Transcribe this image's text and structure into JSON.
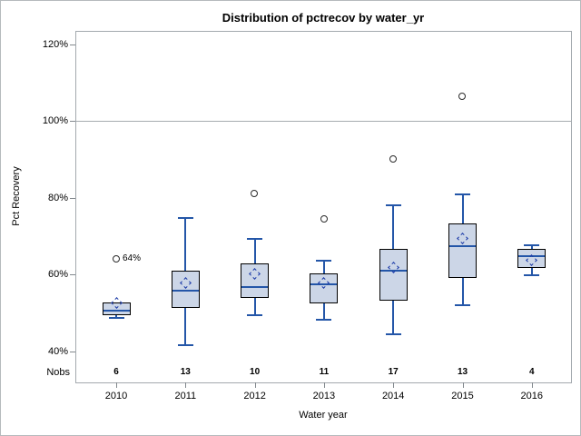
{
  "window": {
    "background": "#ffffff",
    "frame_border": "#b5babd"
  },
  "chart_data": {
    "type": "boxplot",
    "title": "Distribution of pctrecov by water_yr",
    "xlabel": "Water year",
    "ylabel": "Pct Recovery",
    "nobs_label": "Nobs",
    "y_ticks": [
      40,
      60,
      80,
      100,
      120
    ],
    "y_tick_suffix": "%",
    "ylim": [
      36,
      124
    ],
    "reference_line_y": 100,
    "grid": "off",
    "legend": "none",
    "categories": [
      "2010",
      "2011",
      "2012",
      "2013",
      "2014",
      "2015",
      "2016"
    ],
    "nobs": [
      6,
      13,
      10,
      11,
      17,
      13,
      4
    ],
    "series": [
      {
        "year": "2010",
        "nobs": 6,
        "whisker_low": 48.7,
        "q1": 49.4,
        "median": 50.6,
        "mean": 52.6,
        "q3": 52.8,
        "whisker_high": 52.8,
        "outliers": [
          64
        ],
        "outlier_labels": [
          "64%"
        ]
      },
      {
        "year": "2011",
        "nobs": 13,
        "whisker_low": 41.7,
        "q1": 51.3,
        "median": 55.7,
        "mean": 57.8,
        "q3": 61.1,
        "whisker_high": 74.7,
        "outliers": [],
        "outlier_labels": []
      },
      {
        "year": "2012",
        "nobs": 10,
        "whisker_low": 49.5,
        "q1": 54.0,
        "median": 56.8,
        "mean": 60.2,
        "q3": 62.8,
        "whisker_high": 69.3,
        "outliers": [
          81
        ],
        "outlier_labels": []
      },
      {
        "year": "2013",
        "nobs": 11,
        "whisker_low": 48.2,
        "q1": 52.5,
        "median": 57.4,
        "mean": 57.7,
        "q3": 60.4,
        "whisker_high": 63.5,
        "outliers": [
          74.4
        ],
        "outlier_labels": []
      },
      {
        "year": "2014",
        "nobs": 17,
        "whisker_low": 44.5,
        "q1": 53.1,
        "median": 61.0,
        "mean": 61.9,
        "q3": 66.6,
        "whisker_high": 78.0,
        "outliers": [
          90.1
        ],
        "outlier_labels": []
      },
      {
        "year": "2015",
        "nobs": 13,
        "whisker_low": 52.1,
        "q1": 59.0,
        "median": 67.5,
        "mean": 69.3,
        "q3": 73.4,
        "whisker_high": 80.8,
        "outliers": [
          106.4
        ],
        "outlier_labels": []
      },
      {
        "year": "2016",
        "nobs": 4,
        "whisker_low": 59.8,
        "q1": 61.6,
        "median": 64.7,
        "mean": 63.6,
        "q3": 66.6,
        "whisker_high": 67.6,
        "outliers": [],
        "outlier_labels": []
      }
    ],
    "colors": {
      "box_fill": "#ccd6e7",
      "box_border": "#000000",
      "whisker": "#2456a8",
      "median": "#2456a8",
      "mean_diamond": "#1c3ba8",
      "outlier": "#2b2b2b",
      "reference_line": "#a6abaf",
      "plot_border": "#a3a9ae",
      "text": "#000000"
    }
  }
}
